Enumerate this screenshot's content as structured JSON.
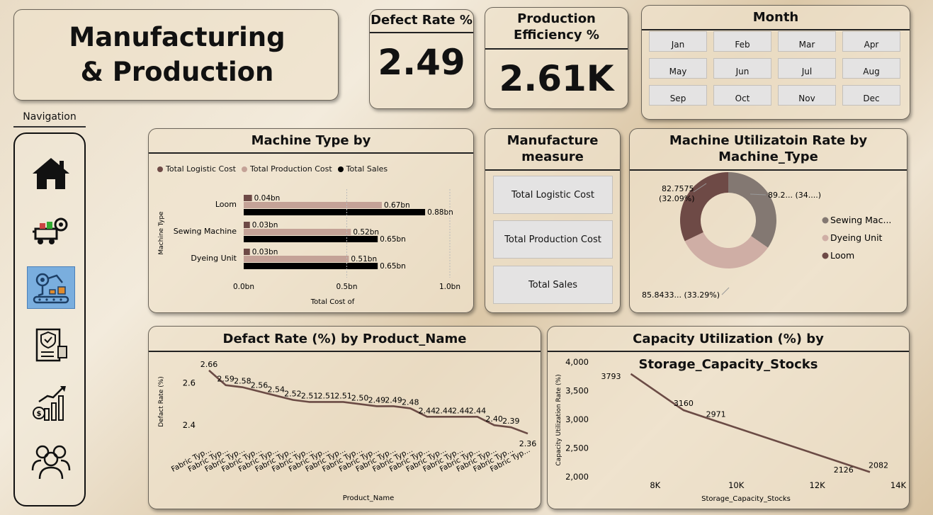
{
  "title": "Manufacturing & Production",
  "kpis": {
    "defect_rate_label": "Defect Rate %",
    "defect_rate_value": "2.49",
    "efficiency_label": "Production Efficiency %",
    "efficiency_value": "2.61K"
  },
  "month_slicer": {
    "title": "Month",
    "months": [
      "Jan",
      "Feb",
      "Mar",
      "Apr",
      "May",
      "Jun",
      "Jul",
      "Aug",
      "Sep",
      "Oct",
      "Nov",
      "Dec"
    ]
  },
  "navigation": {
    "label": "Navigation",
    "items": [
      "home-icon",
      "logistics-truck-icon",
      "production-robot-icon",
      "quality-checklist-icon",
      "finance-growth-icon",
      "team-people-icon"
    ],
    "active_index": 2
  },
  "measure_slicer": {
    "title": "Manufacture measure",
    "options": [
      "Total Logistic Cost",
      "Total Production Cost",
      "Total Sales"
    ]
  },
  "colors": {
    "logistic": "#6e4a46",
    "production": "#c4a297",
    "sales": "#000000",
    "line": "#6b4b45",
    "donut_sewing": "#837872",
    "donut_dyeing": "#cfaea5",
    "donut_loom": "#6e4a46",
    "nav_active": "#7aaede"
  },
  "chart_data": [
    {
      "id": "machine_type_bar",
      "type": "bar",
      "orientation": "horizontal",
      "title": "Machine Type by",
      "xlabel": "Total Cost of",
      "ylabel": "Machine Type",
      "categories": [
        "Loom",
        "Sewing Machine",
        "Dyeing Unit"
      ],
      "series": [
        {
          "name": "Total Logistic Cost",
          "values": [
            0.04,
            0.03,
            0.03
          ],
          "labels": [
            "0.04bn",
            "0.03bn",
            "0.03bn"
          ]
        },
        {
          "name": "Total Production Cost",
          "values": [
            0.67,
            0.52,
            0.51
          ],
          "labels": [
            "0.67bn",
            "0.52bn",
            "0.51bn"
          ]
        },
        {
          "name": "Total Sales",
          "values": [
            0.88,
            0.65,
            0.65
          ],
          "labels": [
            "0.88bn",
            "0.65bn",
            "0.65bn"
          ]
        }
      ],
      "xlim": [
        0,
        1.0
      ],
      "xticks": [
        "0.0bn",
        "0.5bn",
        "1.0bn"
      ],
      "legend": "top-left"
    },
    {
      "id": "utilization_donut",
      "type": "pie",
      "variant": "donut",
      "title": "Machine Utilizatoin Rate by Machine_Type",
      "slices": [
        {
          "name": "Sewing Mac...",
          "value": 89.2,
          "label": "89.2... (34....)"
        },
        {
          "name": "Dyeing Unit",
          "value": 85.8433,
          "label": "85.8433... (33.29%)"
        },
        {
          "name": "Loom",
          "value": 82.7575,
          "label_lines": [
            "82.7575",
            "(32.09%)"
          ]
        }
      ],
      "legend": "right"
    },
    {
      "id": "defect_line",
      "type": "line",
      "title": "Defact Rate (%) by Product_Name",
      "xlabel": "Product_Name",
      "ylabel": "Defact Rate (%)",
      "x_label": "Fabric Typ...",
      "y": [
        2.66,
        2.59,
        2.58,
        2.56,
        2.54,
        2.52,
        2.51,
        2.51,
        2.51,
        2.5,
        2.49,
        2.49,
        2.48,
        2.44,
        2.44,
        2.44,
        2.44,
        2.4,
        2.39,
        2.36
      ],
      "ylim": [
        2.33,
        2.7
      ],
      "yticks": [
        "2.6",
        "2.4"
      ]
    },
    {
      "id": "capacity_line",
      "type": "line",
      "title": "Capacity Utilization (%) by Storage_Capacity_Stocks",
      "xlabel": "Storage_Capacity_Stocks",
      "ylabel": "Capacity Utilization Rate (%)",
      "points": [
        {
          "x": 7400,
          "y": 3793,
          "label": "3793"
        },
        {
          "x": 8700,
          "y": 3160,
          "label": "3160"
        },
        {
          "x": 9500,
          "y": 2971,
          "label": "2971"
        },
        {
          "x": 13300,
          "y": 2082,
          "label": "2082"
        }
      ],
      "extra_labels": [
        {
          "text": "2126"
        }
      ],
      "xlim": [
        6500,
        14000
      ],
      "ylim": [
        2000,
        4000
      ],
      "xticks": [
        "8K",
        "10K",
        "12K",
        "14K"
      ],
      "yticks": [
        "4,000",
        "3,500",
        "3,000",
        "2,500",
        "2,000"
      ]
    }
  ]
}
